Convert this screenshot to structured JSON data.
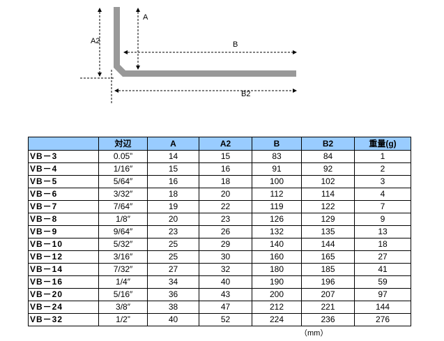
{
  "diagram": {
    "labels": {
      "a": "A",
      "a2": "A2",
      "b": "B",
      "b2": "B2"
    }
  },
  "table": {
    "header": [
      "",
      "対辺",
      "A",
      "A2",
      "B",
      "B2",
      "重量(g)"
    ],
    "rows": [
      [
        "VB－3",
        "0.05”",
        14,
        15,
        83,
        84,
        1
      ],
      [
        "VB－4",
        "1/16″",
        15,
        16,
        91,
        92,
        2
      ],
      [
        "VB－5",
        "5/64″",
        16,
        18,
        100,
        102,
        3
      ],
      [
        "VB－6",
        "3/32″",
        18,
        20,
        112,
        114,
        4
      ],
      [
        "VB－7",
        "7/64″",
        19,
        22,
        119,
        122,
        7
      ],
      [
        "VB－8",
        "1/8″",
        20,
        23,
        126,
        129,
        9
      ],
      [
        "VB－9",
        "9/64″",
        23,
        26,
        132,
        135,
        13
      ],
      [
        "VB－10",
        "5/32″",
        25,
        29,
        140,
        144,
        18
      ],
      [
        "VB－12",
        "3/16″",
        25,
        30,
        160,
        165,
        27
      ],
      [
        "VB－14",
        "7/32″",
        27,
        32,
        180,
        185,
        41
      ],
      [
        "VB－16",
        "1/4″",
        34,
        40,
        190,
        196,
        59
      ],
      [
        "VB－20",
        "5/16″",
        36,
        43,
        200,
        207,
        97
      ],
      [
        "VB－24",
        "3/8″",
        38,
        47,
        212,
        221,
        144
      ],
      [
        "VB－32",
        "1/2”",
        40,
        52,
        224,
        236,
        276
      ]
    ]
  },
  "footer": {
    "unit": "（mm）"
  }
}
